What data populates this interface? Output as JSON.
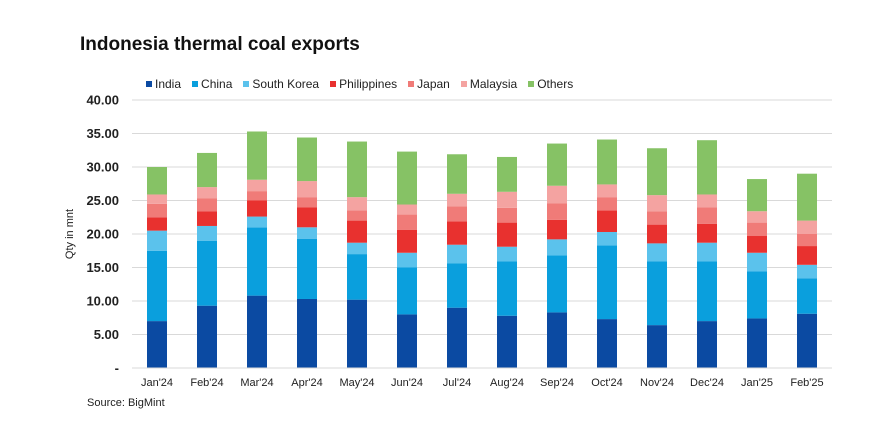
{
  "chart_data": {
    "type": "bar",
    "stacked": true,
    "title": "Indonesia thermal coal exports",
    "xlabel": "",
    "ylabel": "Qty in mnt",
    "ylim": [
      0,
      40
    ],
    "yticks": [
      0,
      5,
      10,
      15,
      20,
      25,
      30,
      35,
      40
    ],
    "ytick_labels": [
      "-",
      "5.00",
      "10.00",
      "15.00",
      "20.00",
      "25.00",
      "30.00",
      "35.00",
      "40.00"
    ],
    "grid": true,
    "legend_position": "top",
    "categories": [
      "Jan'24",
      "Feb'24",
      "Mar'24",
      "Apr'24",
      "May'24",
      "Jun'24",
      "Jul'24",
      "Aug'24",
      "Sep'24",
      "Oct'24",
      "Nov'24",
      "Dec'24",
      "Jan'25",
      "Feb'25"
    ],
    "series": [
      {
        "name": "India",
        "color": "#0b4aa2",
        "values": [
          7.0,
          9.3,
          10.8,
          10.3,
          10.2,
          8.0,
          9.0,
          7.8,
          8.3,
          7.3,
          6.4,
          7.0,
          7.4,
          8.1
        ]
      },
      {
        "name": "China",
        "color": "#0a9fdd",
        "values": [
          10.5,
          9.7,
          10.2,
          9.0,
          6.8,
          7.0,
          6.6,
          8.1,
          8.5,
          11.0,
          9.5,
          8.9,
          7.0,
          5.3
        ]
      },
      {
        "name": "South Korea",
        "color": "#5bc2ec",
        "values": [
          3.0,
          2.2,
          1.6,
          1.7,
          1.7,
          2.2,
          2.8,
          2.2,
          2.4,
          2.0,
          2.7,
          2.8,
          2.8,
          2.0
        ]
      },
      {
        "name": "Philippines",
        "color": "#e8312f",
        "values": [
          2.0,
          2.2,
          2.4,
          3.0,
          3.3,
          3.4,
          3.5,
          3.6,
          2.9,
          3.2,
          2.8,
          2.8,
          2.5,
          2.8
        ]
      },
      {
        "name": "Japan",
        "color": "#f07b78",
        "values": [
          2.0,
          1.9,
          1.4,
          1.5,
          1.5,
          2.3,
          2.2,
          2.2,
          2.5,
          2.0,
          2.0,
          2.5,
          2.0,
          1.8
        ]
      },
      {
        "name": "Malaysia",
        "color": "#f4a3a1",
        "values": [
          1.4,
          1.7,
          1.7,
          2.4,
          2.0,
          1.5,
          1.9,
          2.4,
          2.6,
          1.9,
          2.4,
          1.9,
          1.7,
          2.0
        ]
      },
      {
        "name": "Others",
        "color": "#86c265",
        "values": [
          4.1,
          5.1,
          7.2,
          6.5,
          8.3,
          7.9,
          5.9,
          5.2,
          6.3,
          6.7,
          7.0,
          8.1,
          4.8,
          7.0
        ]
      }
    ],
    "source": "Source: BigMint"
  }
}
